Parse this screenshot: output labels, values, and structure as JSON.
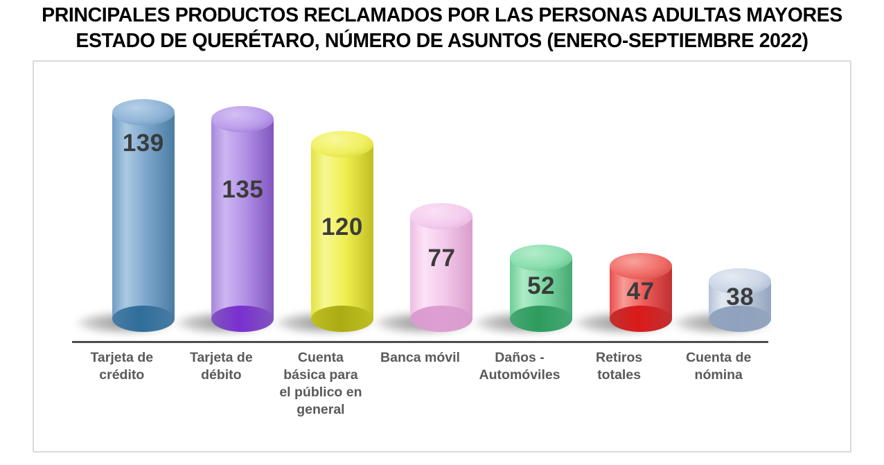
{
  "title": {
    "line1": "PRINCIPALES PRODUCTOS RECLAMADOS POR LAS PERSONAS ADULTAS MAYORES",
    "line2": "ESTADO DE QUERÉTARO, NÚMERO DE ASUNTOS (ENERO-SEPTIEMBRE 2022)"
  },
  "chart_data": {
    "type": "bar",
    "style": "3d-cylinder",
    "title": "PRINCIPALES PRODUCTOS RECLAMADOS POR LAS PERSONAS ADULTAS MAYORES ESTADO DE QUERÉTARO, NÚMERO DE ASUNTOS (ENERO-SEPTIEMBRE 2022)",
    "categories": [
      "Tarjeta de crédito",
      "Tarjeta de débito",
      "Cuenta básica para el público en general",
      "Banca móvil",
      "Daños - Automóviles",
      "Retiros totales",
      "Cuenta de nómina"
    ],
    "values": [
      139,
      135,
      120,
      77,
      52,
      47,
      38
    ],
    "data_labels": "inside",
    "xlabel": "",
    "ylabel": "",
    "grid": false,
    "legend": false,
    "axis_line_color": "#4d4d4d",
    "value_label_color": "#3b3b3b",
    "category_label_color": "#595959",
    "bar_colors": [
      {
        "name": "blue",
        "body": "#7CA6CB",
        "highlight": "#ABC9E2",
        "edge_left": "#6F9DC4",
        "shade": "#497CA3",
        "base": "#2F6E9A",
        "cap": "#8FB4D6",
        "cap_light": "#B6D0E7",
        "cap_edge": "#5E8CB4"
      },
      {
        "name": "purple",
        "body": "#B190E6",
        "highlight": "#CDB6F1",
        "edge_left": "#A687DB",
        "shade": "#8055BE",
        "base": "#7A2FD0",
        "cap": "#BB9DEB",
        "cap_light": "#D4C0F4",
        "cap_edge": "#8E66C9"
      },
      {
        "name": "yellow",
        "body": "#EFEF52",
        "highlight": "#F7F794",
        "edge_left": "#E3E33F",
        "shade": "#BFBF23",
        "base": "#ABAB14",
        "cap": "#F0F060",
        "cap_light": "#F8F89B",
        "cap_edge": "#CFCF2E"
      },
      {
        "name": "pink",
        "body": "#F3C9EC",
        "highlight": "#FBE3F6",
        "edge_left": "#EFBCE5",
        "shade": "#D89DCC",
        "base": "#DE9ED3",
        "cap": "#F4CDEE",
        "cap_light": "#FAE0F5",
        "cap_edge": "#DFA8D4"
      },
      {
        "name": "green",
        "body": "#7ED8A4",
        "highlight": "#AEEBC8",
        "edge_left": "#6FCE97",
        "shade": "#46A873",
        "base": "#2E9C5E",
        "cap": "#8BDFAF",
        "cap_light": "#B2ECCA",
        "cap_edge": "#57B680"
      },
      {
        "name": "red",
        "body": "#EE5C5C",
        "highlight": "#F79C97",
        "edge_left": "#EA4C4C",
        "shade": "#C03030",
        "base": "#DC1A1A",
        "cap": "#F06B66",
        "cap_light": "#F8A29D",
        "cap_edge": "#CC4040"
      },
      {
        "name": "gray-blue",
        "body": "#C2CEDF",
        "highlight": "#E2E9F2",
        "edge_left": "#B5C3D8",
        "shade": "#93A5BF",
        "base": "#8FA2BD",
        "cap": "#CBD6E5",
        "cap_light": "#E4EAF3",
        "cap_edge": "#9FB0C8"
      }
    ]
  }
}
